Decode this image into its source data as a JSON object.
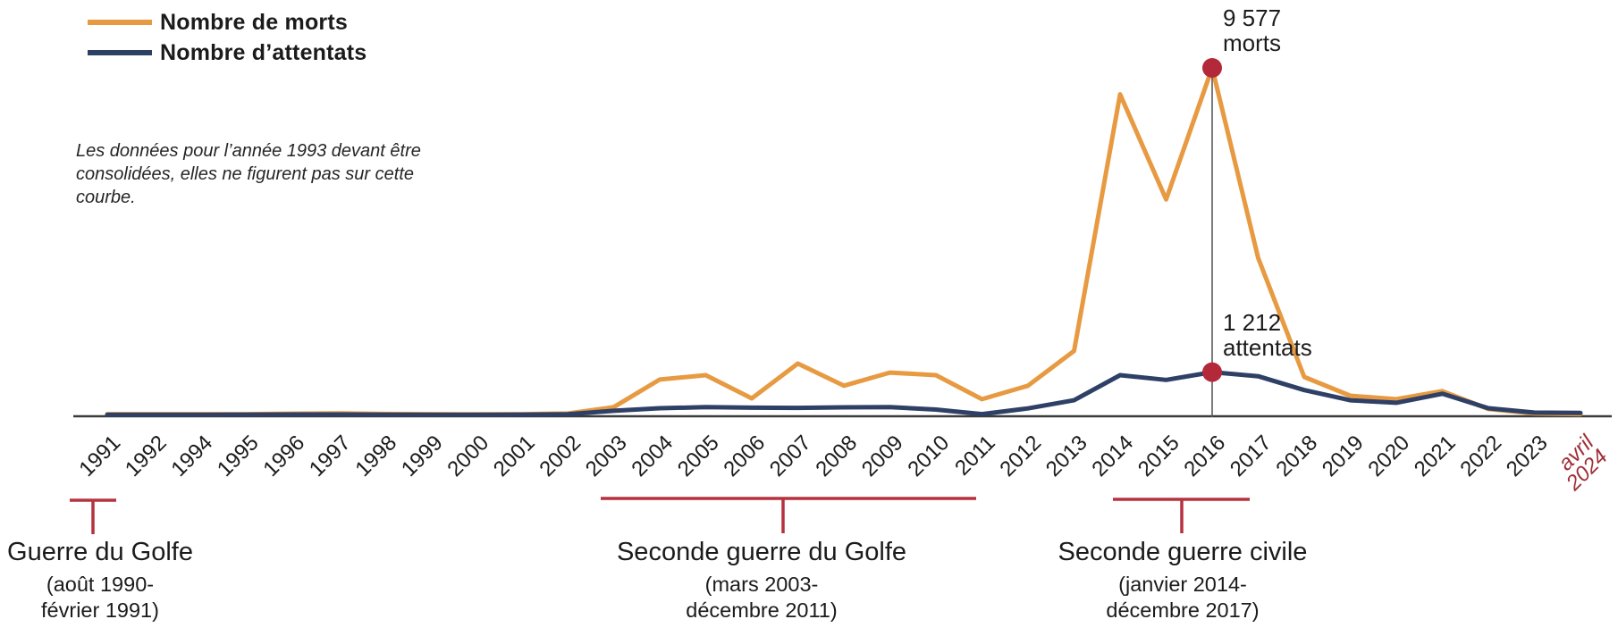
{
  "colors": {
    "morts": "#E79A41",
    "attentats": "#2E4066",
    "accent": "#B5323F",
    "highlight_dot": "#B4293A",
    "tick_special": "#9E2F38",
    "axis": "#3B3B3B",
    "guide_line": "#5A5A5A",
    "text": "#1B1B1B"
  },
  "legend": [
    {
      "label": "Nombre de morts",
      "color": "#E79A41"
    },
    {
      "label": "Nombre d’attentats",
      "color": "#2E4066"
    }
  ],
  "note": "Les données pour l’année 1993 devant être consolidées, elles ne figurent pas sur cette courbe.",
  "annotations": {
    "deaths_peak": {
      "value": "9 577",
      "unit": "morts"
    },
    "attacks_peak": {
      "value": "1 212",
      "unit": "attentats"
    }
  },
  "periods": [
    {
      "title": "Guerre du Golfe",
      "dates": "(août 1990-\nfévrier 1991)"
    },
    {
      "title": "Seconde guerre du Golfe",
      "dates": "(mars 2003-\ndécembre 2011)"
    },
    {
      "title": "Seconde guerre civile",
      "dates": "(janvier 2014-\ndécembre 2017)"
    }
  ],
  "chart_data": {
    "type": "line",
    "title": "",
    "x_labels": [
      "1991",
      "1992",
      "1994",
      "1995",
      "1996",
      "1997",
      "1998",
      "1999",
      "2000",
      "2001",
      "2002",
      "2003",
      "2004",
      "2005",
      "2006",
      "2007",
      "2008",
      "2009",
      "2010",
      "2011",
      "2012",
      "2013",
      "2014",
      "2015",
      "2016",
      "2017",
      "2018",
      "2019",
      "2020",
      "2021",
      "2022",
      "2023",
      "avril\n2024"
    ],
    "missing_year": "1993",
    "series": [
      {
        "name": "Nombre de morts",
        "color_key": "morts",
        "values": [
          60,
          60,
          60,
          60,
          70,
          80,
          65,
          60,
          55,
          60,
          75,
          250,
          1010,
          1130,
          490,
          1450,
          840,
          1200,
          1130,
          470,
          840,
          1795,
          8850,
          5960,
          9577,
          4350,
          1080,
          565,
          470,
          690,
          200,
          75,
          60
        ]
      },
      {
        "name": "Nombre d’attentats",
        "color_key": "attentats",
        "values": [
          40,
          40,
          40,
          45,
          50,
          50,
          45,
          40,
          40,
          45,
          55,
          150,
          220,
          250,
          235,
          230,
          245,
          250,
          185,
          60,
          215,
          440,
          1130,
          1000,
          1212,
          1100,
          720,
          440,
          370,
          620,
          220,
          100,
          90
        ]
      }
    ],
    "highlight": {
      "x_label": "2016",
      "morts": 9577,
      "attentats": 1212
    },
    "y_axis_visible": false,
    "grid": false,
    "legend_position": "top-left",
    "ylim": [
      0,
      9577
    ]
  }
}
